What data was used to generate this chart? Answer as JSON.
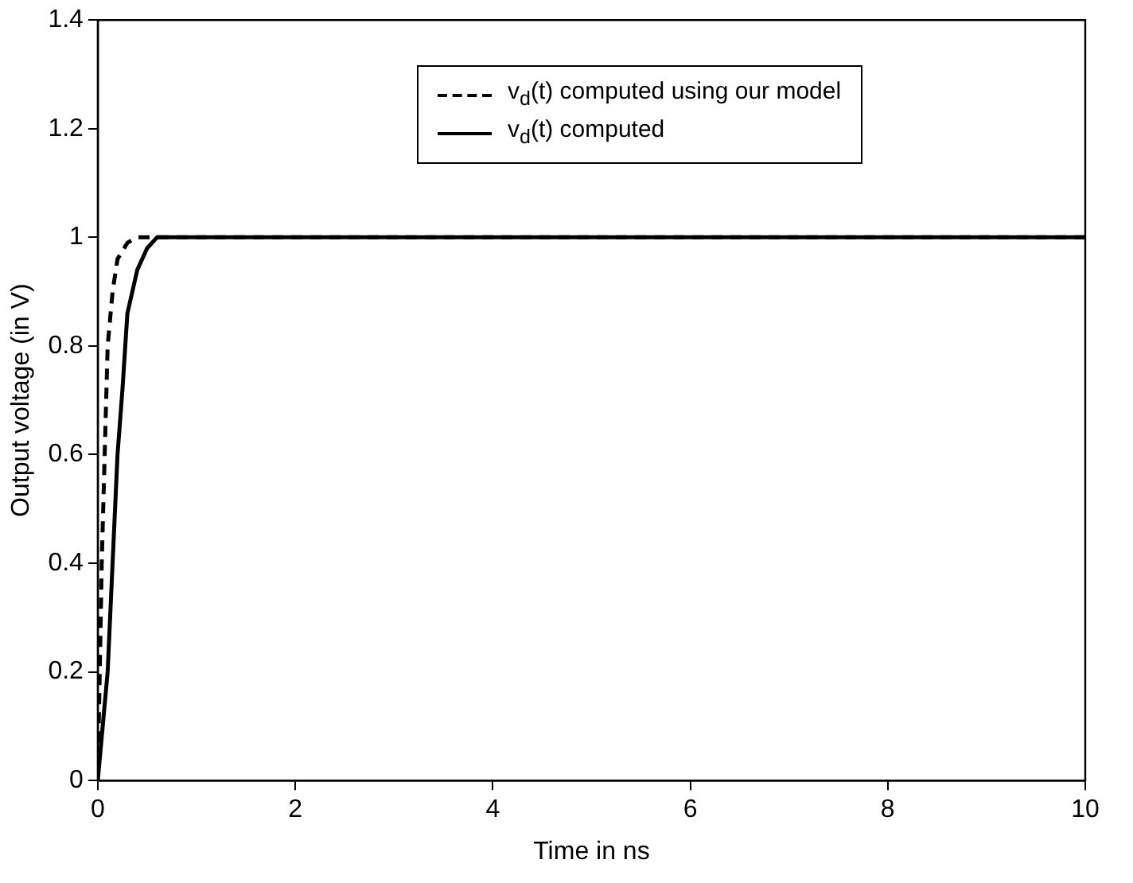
{
  "chart_data": {
    "type": "line",
    "xlabel": "Time in ns",
    "ylabel": "Output voltage (in V)",
    "xlim": [
      0,
      10
    ],
    "xticks": [
      0,
      2,
      4,
      6,
      8,
      10
    ],
    "ylim": [
      0,
      1.4
    ],
    "yticks": [
      0,
      0.2,
      0.4,
      0.6,
      0.8,
      1,
      1.2,
      1.4
    ],
    "grid": false,
    "legend": "top right",
    "marker": "none",
    "series": [
      {
        "name": "v$_{d}$(t) computed using our model",
        "color": "#000000",
        "line_style": "dashed",
        "x": [
          0,
          0.02,
          0.04,
          0.07,
          0.1,
          0.15,
          0.2,
          0.3,
          0.4,
          10
        ],
        "values": [
          0,
          0.2,
          0.4,
          0.6,
          0.8,
          0.9,
          0.96,
          0.99,
          1,
          1
        ]
      },
      {
        "name": "v$_{d}$(t) computed",
        "color": "#000000",
        "line_style": "solid",
        "x": [
          0,
          0.05,
          0.1,
          0.15,
          0.2,
          0.25,
          0.3,
          0.4,
          0.5,
          0.6,
          0.8,
          10
        ],
        "values": [
          0,
          0.1,
          0.2,
          0.4,
          0.6,
          0.72,
          0.86,
          0.94,
          0.98,
          1,
          1,
          1
        ]
      }
    ]
  }
}
